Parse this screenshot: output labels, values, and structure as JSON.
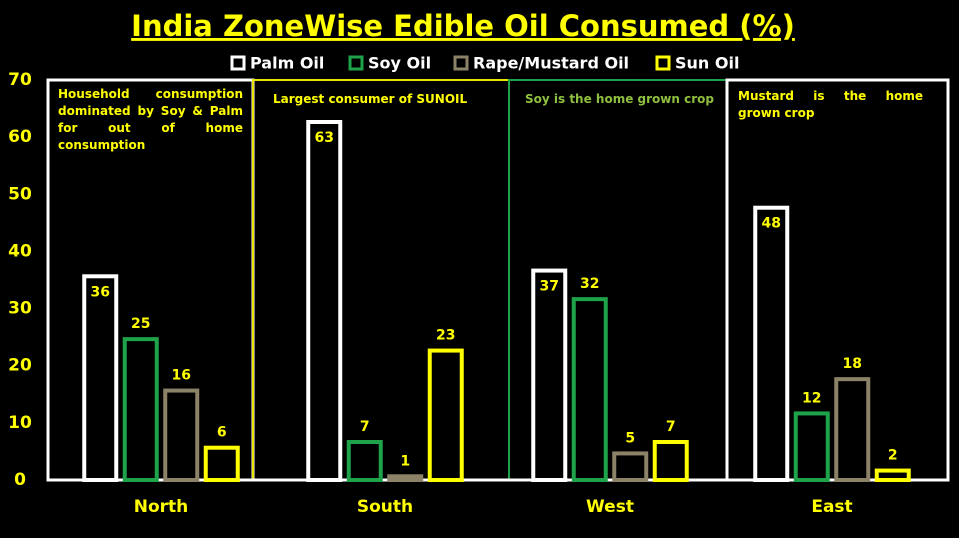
{
  "chart_data": {
    "type": "bar",
    "title": "India ZoneWise Edible Oil Consumed (%)",
    "categories": [
      "North",
      "South",
      "West",
      "East"
    ],
    "series": [
      {
        "name": "Palm Oil",
        "color": "#ffffff",
        "values": [
          36,
          63,
          37,
          48
        ]
      },
      {
        "name": "Soy Oil",
        "color": "#1fa34a",
        "values": [
          25,
          7,
          32,
          12
        ]
      },
      {
        "name": "Rape/Mustard Oil",
        "color": "#8c8267",
        "values": [
          16,
          1,
          5,
          18
        ]
      },
      {
        "name": "Sun Oil",
        "color": "#ffff00",
        "values": [
          6,
          23,
          7,
          2
        ]
      }
    ],
    "ylim": [
      0,
      70
    ],
    "yticks": [
      0,
      10,
      20,
      30,
      40,
      50,
      60,
      70
    ],
    "grid": false,
    "legend": "top",
    "text_color": "#ffff00",
    "panel_colors": [
      "#ffffff",
      "#e6e600",
      "#1fa34a",
      "#ffffff"
    ],
    "annotations": [
      {
        "text": "Household consumption dominated by Soy & Palm for out of home consumption",
        "color": "#ffff00"
      },
      {
        "text": "Largest consumer of SUNOIL",
        "color": "#ffff00"
      },
      {
        "text": "Soy is the home grown crop",
        "color": "#8fbf3f"
      },
      {
        "text": "Mustard is the home grown crop",
        "color": "#ffff00"
      }
    ]
  }
}
